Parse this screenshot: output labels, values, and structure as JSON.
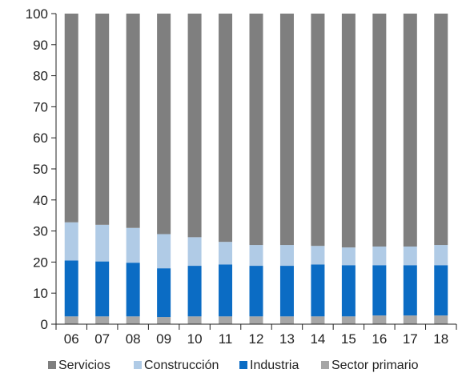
{
  "chart_data": {
    "type": "bar",
    "stacked": true,
    "categories": [
      "06",
      "07",
      "08",
      "09",
      "10",
      "11",
      "12",
      "13",
      "14",
      "15",
      "16",
      "17",
      "18"
    ],
    "series": [
      {
        "name": "Sector primario",
        "color": "#a6a6a6",
        "values": [
          2.5,
          2.5,
          2.5,
          2.3,
          2.5,
          2.5,
          2.5,
          2.5,
          2.5,
          2.5,
          2.8,
          2.8,
          2.8
        ]
      },
      {
        "name": "Industria",
        "color": "#0b6cc4",
        "values": [
          18.0,
          17.7,
          17.3,
          15.7,
          16.3,
          16.7,
          16.3,
          16.3,
          16.7,
          16.5,
          16.2,
          16.2,
          16.2
        ]
      },
      {
        "name": "Construcción",
        "color": "#b0cbe6",
        "values": [
          12.3,
          11.8,
          11.2,
          11.0,
          9.2,
          7.3,
          6.7,
          6.7,
          6.0,
          5.7,
          6.0,
          6.0,
          6.5
        ]
      },
      {
        "name": "Servicios",
        "color": "#7f7f7f",
        "values": [
          67.2,
          68.0,
          69.0,
          71.0,
          72.0,
          73.5,
          74.5,
          74.5,
          74.8,
          75.3,
          75.0,
          75.0,
          74.5
        ]
      }
    ],
    "legend_order": [
      "Servicios",
      "Construcción",
      "Industria",
      "Sector primario"
    ],
    "y_ticks": [
      "0",
      "10",
      "20",
      "30",
      "40",
      "50",
      "60",
      "70",
      "80",
      "90",
      "100"
    ],
    "ylim": [
      0,
      100
    ],
    "grid": false,
    "legend_position": "bottom"
  }
}
